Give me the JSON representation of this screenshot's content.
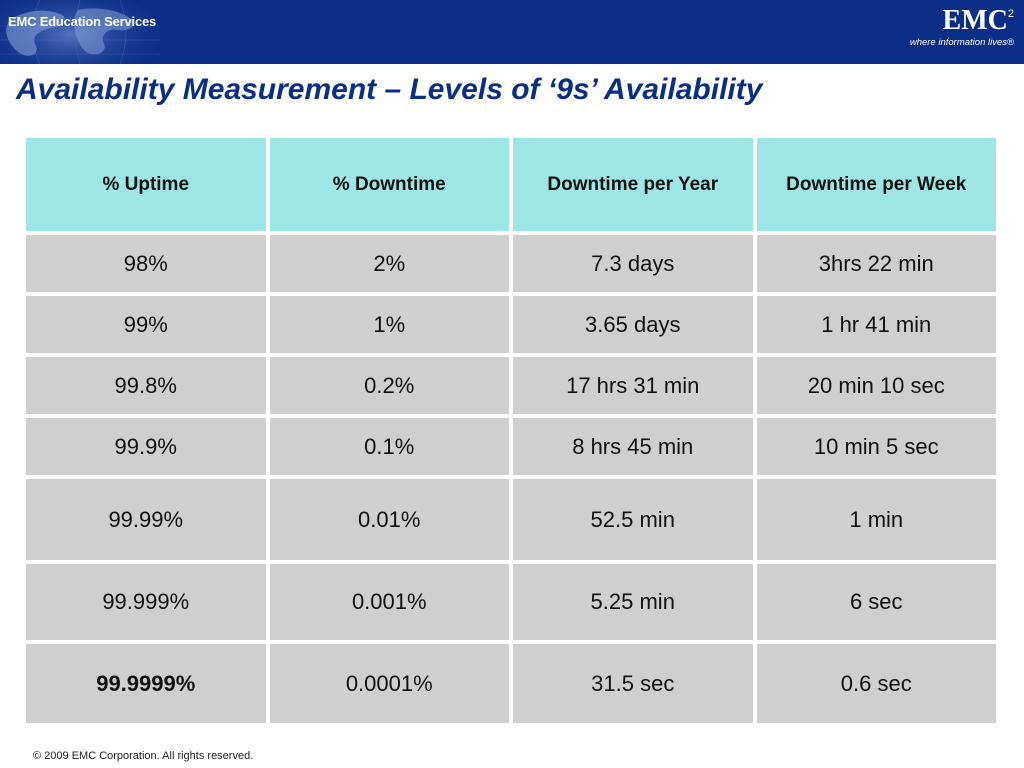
{
  "header": {
    "brand_left": "EMC Education Services",
    "logo_mark": "EMC",
    "logo_sup": "2",
    "logo_tagline": "where information lives",
    "logo_tm": "®",
    "background_color": "#0a2e86"
  },
  "title": "Availability Measurement – Levels of ‘9s’ Availability",
  "table": {
    "header_color": "#9ee6e6",
    "cell_color": "#cfcfcf",
    "columns": [
      "% Uptime",
      "% Downtime",
      "Downtime per Year",
      "Downtime per Week"
    ],
    "rows": [
      [
        "98%",
        "2%",
        "7.3 days",
        "3hrs 22 min"
      ],
      [
        "99%",
        "1%",
        "3.65 days",
        "1 hr 41 min"
      ],
      [
        "99.8%",
        "0.2%",
        "17 hrs 31 min",
        "20 min 10 sec"
      ],
      [
        "99.9%",
        "0.1%",
        "8 hrs 45 min",
        "10 min 5 sec"
      ],
      [
        "99.99%",
        "0.01%",
        "52.5 min",
        "1 min"
      ],
      [
        "99.999%",
        "0.001%",
        "5.25 min",
        "6 sec"
      ],
      [
        "99.9999%",
        "0.0001%",
        "31.5 sec",
        "0.6 sec"
      ]
    ]
  },
  "footer": "© 2009 EMC Corporation. All rights reserved."
}
